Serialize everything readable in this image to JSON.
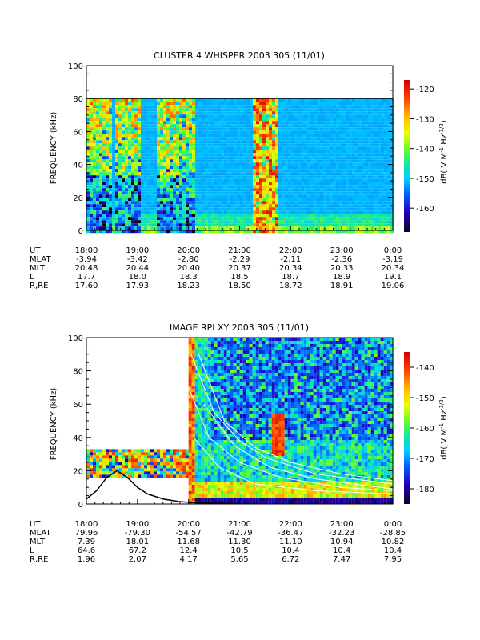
{
  "chart_data": [
    {
      "type": "heatmap",
      "title": "CLUSTER 4 WHISPER 2003 305 (11/01)",
      "ylabel": "FREQUENCY (kHz)",
      "ylim": [
        0,
        100
      ],
      "yticks": [
        "0",
        "20",
        "40",
        "60",
        "80",
        "100"
      ],
      "xlabels": [
        "18:00",
        "19:00",
        "20:00",
        "21:00",
        "22:00",
        "23:00",
        "0:00"
      ],
      "colorbar": {
        "label": "dB( V M⁻¹ Hz⁻¹ᐟ² )",
        "label_parts": [
          "dB( V M",
          "-1",
          " Hz",
          "-1/2",
          ")"
        ],
        "range": [
          -168,
          -117
        ],
        "ticks": [
          "-120",
          "-130",
          "-140",
          "-150",
          "-160"
        ]
      },
      "data_top_khz": 80,
      "intense_intervals_hours_after_18": [
        [
          0.0,
          0.5
        ],
        [
          0.55,
          1.05
        ],
        [
          1.35,
          2.1
        ],
        [
          3.25,
          3.75
        ]
      ],
      "background_level_db": -150,
      "ephemeris": [
        {
          "name": "UT",
          "values": [
            "18:00",
            "19:00",
            "20:00",
            "21:00",
            "22:00",
            "23:00",
            "0:00"
          ]
        },
        {
          "name": "MLAT",
          "values": [
            "-3.94",
            "-3.42",
            "-2.80",
            "-2.29",
            "-2.11",
            "-2.36",
            "-3.19"
          ]
        },
        {
          "name": "MLT",
          "values": [
            "20.48",
            "20.44",
            "20.40",
            "20.37",
            "20.34",
            "20.33",
            "20.34"
          ]
        },
        {
          "name": "L",
          "values": [
            "17.7",
            "18.0",
            "18.3",
            "18.5",
            "18.7",
            "18.9",
            "19.1"
          ]
        },
        {
          "name": "R,RE",
          "values": [
            "17.60",
            "17.93",
            "18.23",
            "18.50",
            "18.72",
            "18.91",
            "19.06"
          ]
        }
      ]
    },
    {
      "type": "heatmap",
      "title": "IMAGE RPI XY 2003 305 (11/01)",
      "ylabel": "FREQUENCY (kHz)",
      "ylim": [
        0,
        100
      ],
      "yticks": [
        "0",
        "20",
        "40",
        "60",
        "80",
        "100"
      ],
      "xlabels": [
        "18:00",
        "19:00",
        "20:00",
        "21:00",
        "22:00",
        "23:00",
        "0:00"
      ],
      "colorbar": {
        "label": "dB( V M⁻¹ Hz⁻¹ᐟ² )",
        "label_parts": [
          "dB( V M",
          "-1",
          " Hz",
          "-1/2",
          ")"
        ],
        "range": [
          -185,
          -135
        ],
        "ticks": [
          "-140",
          "-150",
          "-160",
          "-170",
          "-180"
        ]
      },
      "early_data_khz": [
        17,
        33
      ],
      "early_data_hours_after_18": [
        0.0,
        2.0
      ],
      "full_data_start_hours_after_18": 2.0,
      "plasma_frequency_curve": {
        "x_hours_after_18": [
          0.0,
          0.2,
          0.4,
          0.6,
          0.8,
          1.0,
          1.2,
          1.5,
          1.8,
          2.1,
          2.5,
          3.0
        ],
        "y_khz": [
          3,
          8,
          16,
          20,
          16,
          10,
          6,
          3,
          1.5,
          0.8,
          0.4,
          0.2
        ]
      },
      "ephemeris": [
        {
          "name": "UT",
          "values": [
            "18:00",
            "19:00",
            "20:00",
            "21:00",
            "22:00",
            "23:00",
            "0:00"
          ]
        },
        {
          "name": "MLAT",
          "values": [
            "79.96",
            "-79.30",
            "-54.57",
            "-42.79",
            "-36.47",
            "-32.23",
            "-28.85"
          ]
        },
        {
          "name": "MLT",
          "values": [
            "7.39",
            "18.01",
            "11.68",
            "11.30",
            "11.10",
            "10.94",
            "10.82"
          ]
        },
        {
          "name": "L",
          "values": [
            "64.6",
            "67.2",
            "12.4",
            "10.5",
            "10.4",
            "10.4",
            "10.4"
          ]
        },
        {
          "name": "R,RE",
          "values": [
            "1.96",
            "2.07",
            "4.17",
            "5.65",
            "6.72",
            "7.47",
            "7.95"
          ]
        }
      ]
    }
  ]
}
